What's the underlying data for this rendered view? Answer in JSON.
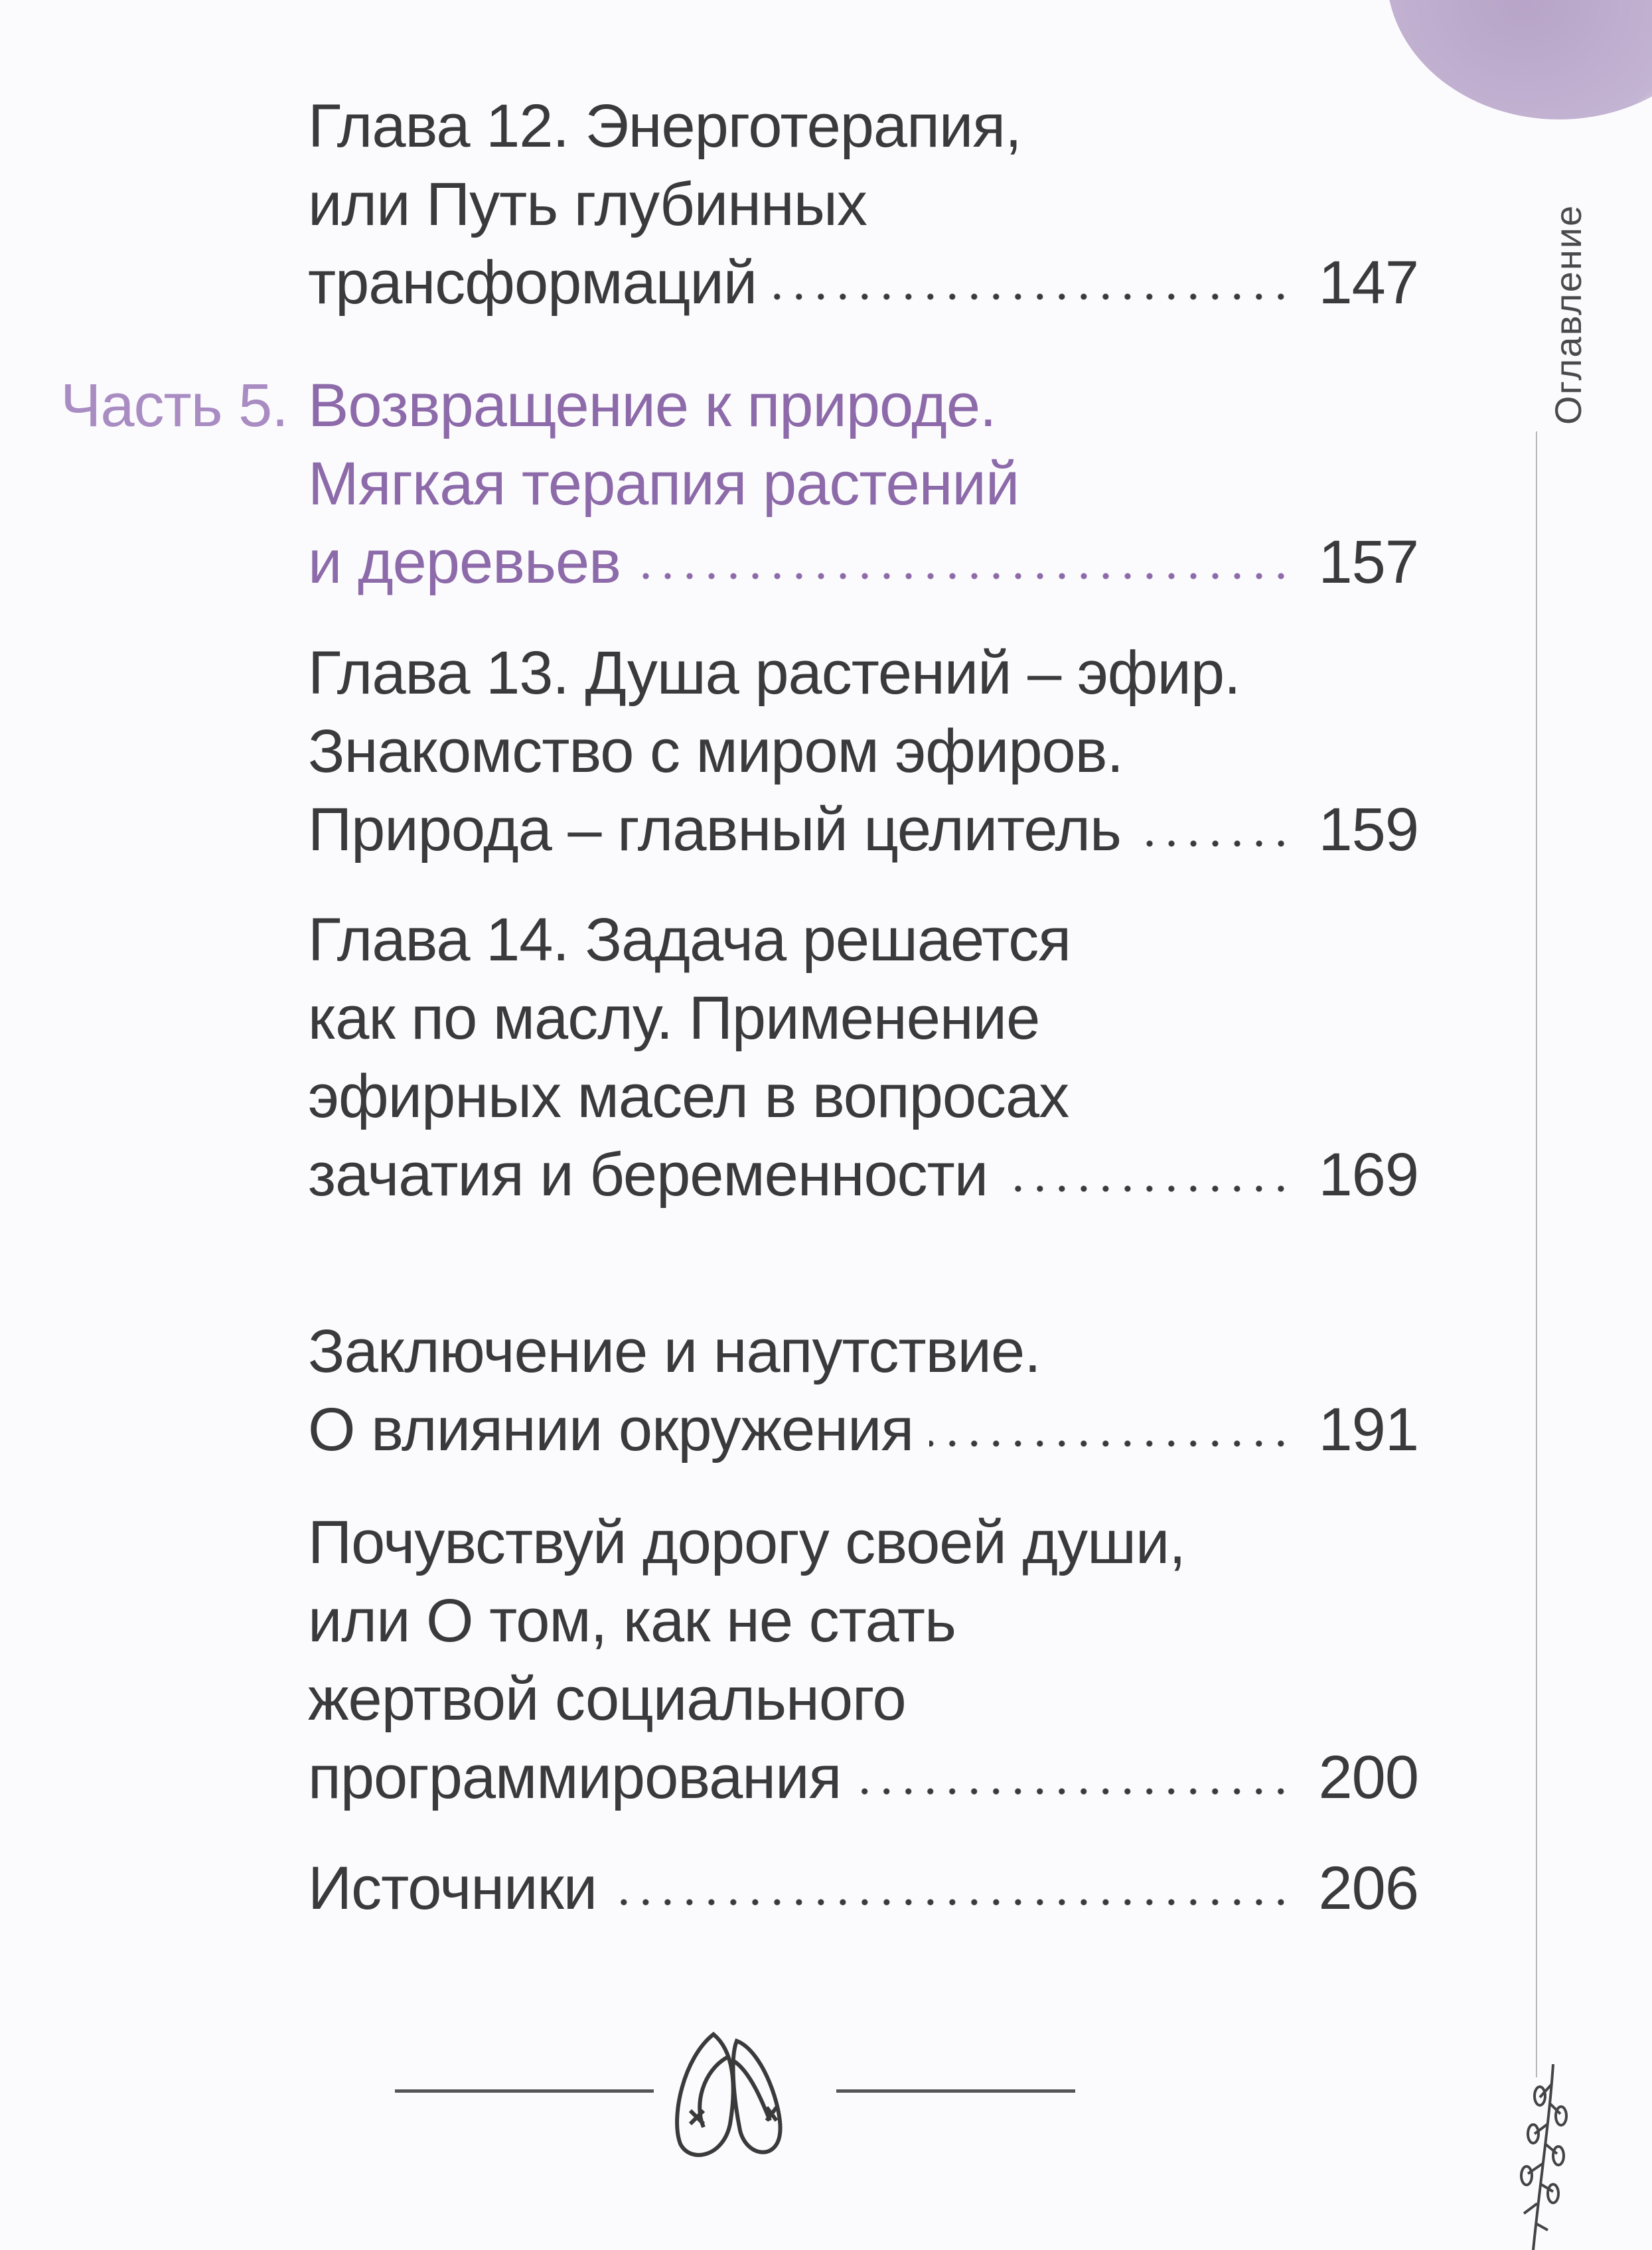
{
  "side_title": "Оглавление",
  "entries": [
    {
      "lines": [
        "Глава 12. Энерготерапия,",
        "или Путь глубинных",
        "трансформаций"
      ],
      "page": "147"
    },
    {
      "label": "Часть 5.",
      "lines": [
        "Возвращение к природе.",
        "Мягкая терапия растений",
        "и деревьев"
      ],
      "page": "157"
    },
    {
      "lines": [
        "Глава 13. Душа растений – эфир.",
        "Знакомство с миром эфиров.",
        "Природа – главный целитель"
      ],
      "page": "159"
    },
    {
      "lines": [
        "Глава 14. Задача решается",
        "как по маслу. Применение",
        "эфирных масел в вопросах",
        "зачатия и беременности"
      ],
      "page": "169"
    },
    {
      "lines": [
        "Заключение и напутствие.",
        "О влиянии окружения"
      ],
      "page": "191"
    },
    {
      "lines": [
        "Почувствуй дорогу своей души,",
        "или О том, как не стать",
        "жертвой социального",
        "программирования"
      ],
      "page": "200"
    },
    {
      "lines": [
        "Источники"
      ],
      "page": "206"
    }
  ],
  "colors": {
    "part_label": "#a88cc2",
    "part_title": "#8d6aa9",
    "text": "#3a3a3c",
    "blob": "#b7a4c8"
  },
  "icons": [
    "ballet-shoes-ornament-icon",
    "lavender-sprig-icon"
  ]
}
